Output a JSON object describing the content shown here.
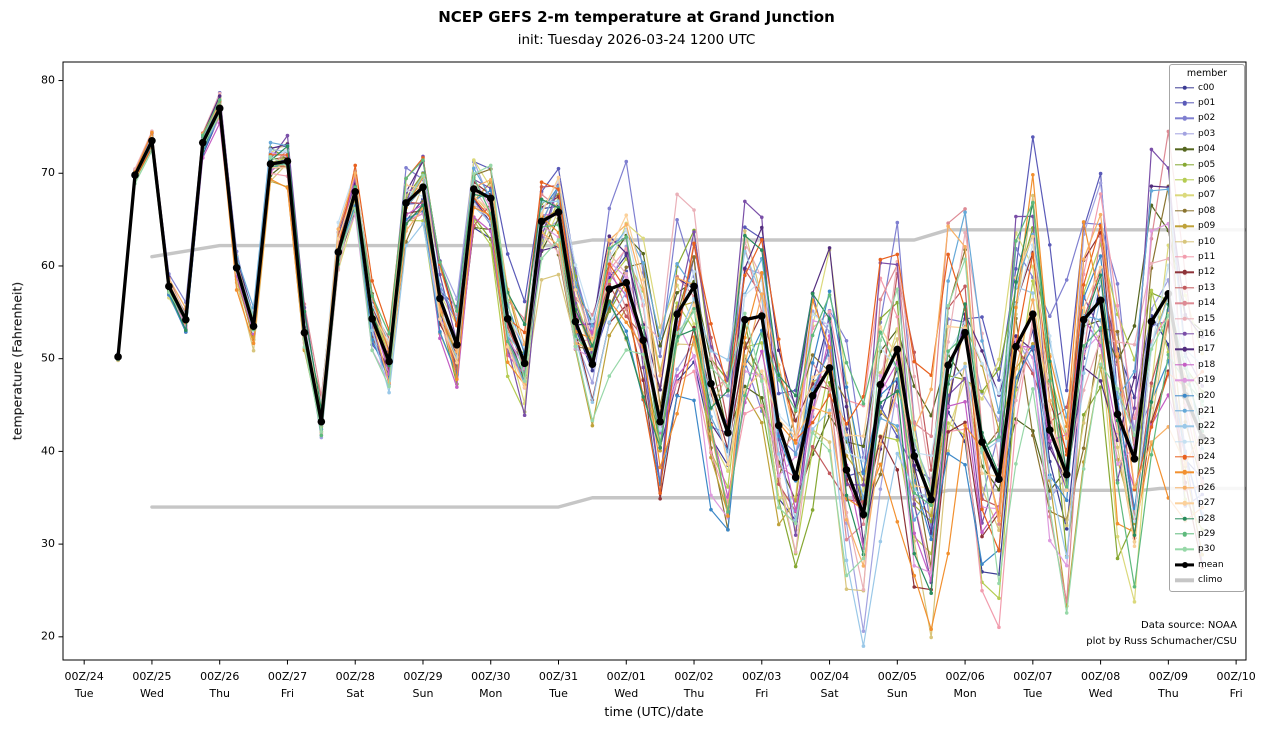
{
  "figure": {
    "title": "NCEP GEFS 2-m temperature at Grand Junction",
    "subtitle": "init: Tuesday 2026-03-24 1200 UTC",
    "footer": {
      "line1": "Data source: NOAA",
      "line2": "plot by Russ Schumacher/CSU"
    },
    "background": "#ffffff"
  },
  "chart_data": {
    "type": "line",
    "title": "NCEP GEFS 2-m temperature at Grand Junction",
    "subtitle": "init: Tuesday 2026-03-24 1200 UTC",
    "xlabel": "time (UTC)/date",
    "ylabel": "temperature (Fahrenheit)",
    "legend_title": "member",
    "legend_position": "upper right",
    "grid": false,
    "ylim": [
      17.5,
      82
    ],
    "xlim_hours": [
      -7.5,
      411.5
    ],
    "yticks": [
      20,
      30,
      40,
      50,
      60,
      70,
      80
    ],
    "xticks": [
      {
        "hour": 0,
        "label": "00Z/24",
        "day": "Tue"
      },
      {
        "hour": 24,
        "label": "00Z/25",
        "day": "Wed"
      },
      {
        "hour": 48,
        "label": "00Z/26",
        "day": "Thu"
      },
      {
        "hour": 72,
        "label": "00Z/27",
        "day": "Fri"
      },
      {
        "hour": 96,
        "label": "00Z/28",
        "day": "Sat"
      },
      {
        "hour": 120,
        "label": "00Z/29",
        "day": "Sun"
      },
      {
        "hour": 144,
        "label": "00Z/30",
        "day": "Mon"
      },
      {
        "hour": 168,
        "label": "00Z/31",
        "day": "Tue"
      },
      {
        "hour": 192,
        "label": "00Z/01",
        "day": "Wed"
      },
      {
        "hour": 216,
        "label": "00Z/02",
        "day": "Thu"
      },
      {
        "hour": 240,
        "label": "00Z/03",
        "day": "Fri"
      },
      {
        "hour": 264,
        "label": "00Z/04",
        "day": "Sat"
      },
      {
        "hour": 288,
        "label": "00Z/05",
        "day": "Sun"
      },
      {
        "hour": 312,
        "label": "00Z/06",
        "day": "Mon"
      },
      {
        "hour": 336,
        "label": "00Z/07",
        "day": "Tue"
      },
      {
        "hour": 360,
        "label": "00Z/08",
        "day": "Wed"
      },
      {
        "hour": 384,
        "label": "00Z/09",
        "day": "Thu"
      },
      {
        "hour": 408,
        "label": "00Z/10",
        "day": "Fri"
      }
    ],
    "time_start_hour": 12,
    "time_step_hours": 6,
    "num_times": 65,
    "mean": {
      "name": "mean",
      "color": "#000000",
      "values": [
        50.2,
        69.8,
        73.5,
        57.8,
        54.2,
        73.3,
        77.0,
        59.8,
        53.5,
        71.0,
        71.3,
        52.8,
        43.2,
        61.5,
        68.0,
        54.3,
        49.7,
        66.8,
        68.5,
        56.5,
        51.5,
        68.3,
        67.3,
        54.3,
        49.5,
        64.8,
        65.8,
        54.0,
        49.4,
        57.5,
        58.2,
        52.0,
        43.2,
        54.8,
        57.8,
        47.3,
        42.0,
        54.2,
        54.6,
        42.8,
        37.2,
        46.0,
        49.0,
        38.0,
        33.2,
        47.2,
        51.0,
        39.5,
        34.8,
        49.3,
        52.8,
        41.0,
        37.0,
        51.3,
        54.8,
        42.3,
        37.5,
        54.2,
        56.3,
        44.0,
        39.2,
        54.0,
        57.0,
        46.0,
        41.5
      ]
    },
    "climo": {
      "name": "climo",
      "color": "#c6c6c6",
      "upper": [
        [
          24,
          61.0
        ],
        [
          48,
          62.2
        ],
        [
          168,
          62.2
        ],
        [
          180,
          62.8
        ],
        [
          294,
          62.8
        ],
        [
          306,
          63.9
        ],
        [
          411,
          63.9
        ]
      ],
      "lower": [
        [
          24,
          34.0
        ],
        [
          168,
          34.0
        ],
        [
          180,
          35.0
        ],
        [
          294,
          35.0
        ],
        [
          306,
          35.8
        ],
        [
          375,
          35.8
        ],
        [
          381,
          36.0
        ],
        [
          411,
          36.0
        ]
      ]
    },
    "spread_halfwidth_F": [
      0.4,
      0.6,
      0.7,
      0.9,
      1.0,
      1.1,
      1.2,
      1.4,
      1.5,
      1.6,
      1.8,
      2.0,
      2.2,
      2.4,
      2.5,
      2.7,
      2.8,
      3.0,
      3.2,
      3.4,
      3.5,
      3.7,
      3.9,
      4.0,
      4.2,
      4.5,
      4.8,
      5.0,
      5.5,
      6.0,
      6.5,
      7.0,
      7.5,
      7.8,
      8.0,
      8.2,
      8.5,
      8.8,
      9.0,
      9.2,
      9.5,
      9.8,
      10.0,
      10.2,
      10.5,
      10.8,
      11.0,
      11.0,
      11.2,
      11.3,
      11.5,
      11.5,
      11.5,
      11.6,
      11.8,
      11.8,
      12.0,
      12.0,
      12.0,
      12.0,
      12.0,
      12.0,
      11.5,
      11.0,
      10.5
    ],
    "members": [
      {
        "name": "c00",
        "color": "#3c3c94",
        "seed": 7
      },
      {
        "name": "p01",
        "color": "#5a5ab8",
        "seed": 13
      },
      {
        "name": "p02",
        "color": "#7f7fd0",
        "seed": 21
      },
      {
        "name": "p03",
        "color": "#a3a3e0",
        "seed": 34
      },
      {
        "name": "p04",
        "color": "#55661f",
        "seed": 45
      },
      {
        "name": "p05",
        "color": "#86a832",
        "seed": 52
      },
      {
        "name": "p06",
        "color": "#b5cc52",
        "seed": 63
      },
      {
        "name": "p07",
        "color": "#dbd97c",
        "seed": 71
      },
      {
        "name": "p08",
        "color": "#8a7430",
        "seed": 88
      },
      {
        "name": "p09",
        "color": "#bfa23a",
        "seed": 92
      },
      {
        "name": "p10",
        "color": "#d8c57c",
        "seed": 103
      },
      {
        "name": "p11",
        "color": "#f29dae",
        "seed": 117
      },
      {
        "name": "p12",
        "color": "#8e3339",
        "seed": 129
      },
      {
        "name": "p13",
        "color": "#c25a5e",
        "seed": 131
      },
      {
        "name": "p14",
        "color": "#dd8a94",
        "seed": 145
      },
      {
        "name": "p15",
        "color": "#eab0b8",
        "seed": 154
      },
      {
        "name": "p16",
        "color": "#7a4fa8",
        "seed": 167
      },
      {
        "name": "p17",
        "color": "#532d7e",
        "seed": 178
      },
      {
        "name": "p18",
        "color": "#c45ec4",
        "seed": 186
      },
      {
        "name": "p19",
        "color": "#de9ade",
        "seed": 199
      },
      {
        "name": "p20",
        "color": "#3c88c8",
        "seed": 204
      },
      {
        "name": "p21",
        "color": "#66a9d8",
        "seed": 215
      },
      {
        "name": "p22",
        "color": "#9ac8e8",
        "seed": 228
      },
      {
        "name": "p23",
        "color": "#c6e0f2",
        "seed": 231
      },
      {
        "name": "p24",
        "color": "#e8611f",
        "seed": 247
      },
      {
        "name": "p25",
        "color": "#f2902f",
        "seed": 256
      },
      {
        "name": "p26",
        "color": "#f7b065",
        "seed": 263
      },
      {
        "name": "p27",
        "color": "#fbd09a",
        "seed": 274
      },
      {
        "name": "p28",
        "color": "#2a8c5c",
        "seed": 289
      },
      {
        "name": "p29",
        "color": "#5fba7d",
        "seed": 293
      },
      {
        "name": "p30",
        "color": "#97d8a8",
        "seed": 307
      }
    ]
  }
}
